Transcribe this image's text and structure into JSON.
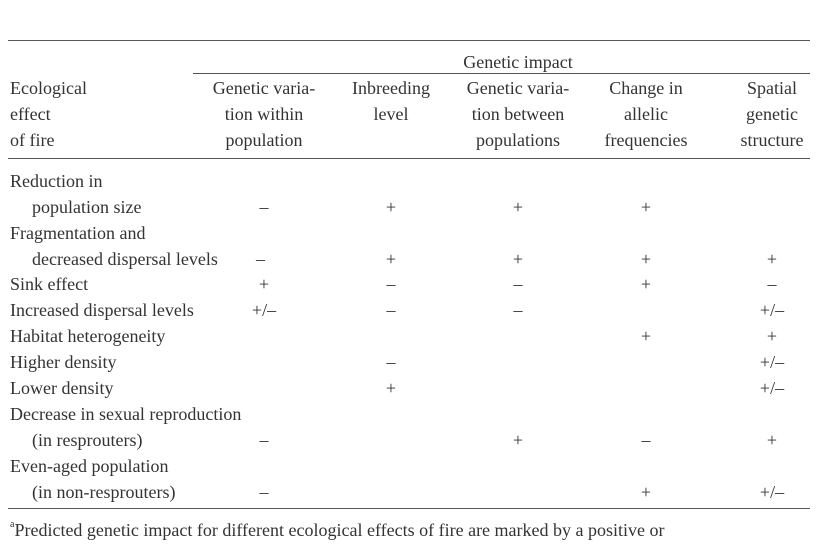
{
  "table": {
    "super_header": "Genetic impact",
    "row_header": [
      "Ecological",
      "effect",
      "of fire"
    ],
    "columns": [
      [
        "Genetic varia-",
        "tion within",
        "population"
      ],
      [
        "Inbreeding",
        "level"
      ],
      [
        "Genetic varia-",
        "tion between",
        "populations"
      ],
      [
        "Change in",
        "allelic",
        "frequencies"
      ],
      [
        "Spatial",
        "genetic",
        "structure"
      ]
    ],
    "rows": [
      {
        "label": [
          "Reduction in",
          "population size"
        ],
        "values": [
          "–",
          "+",
          "+",
          "+",
          ""
        ]
      },
      {
        "label": [
          "Fragmentation and",
          "decreased dispersal levels"
        ],
        "values": [
          "–",
          "+",
          "+",
          "+",
          "+"
        ]
      },
      {
        "label": [
          "Sink effect"
        ],
        "values": [
          "+",
          "–",
          "–",
          "+",
          "–"
        ]
      },
      {
        "label": [
          "Increased dispersal levels"
        ],
        "values": [
          "+/–",
          "–",
          "–",
          "",
          "+/–"
        ]
      },
      {
        "label": [
          "Habitat heterogeneity"
        ],
        "values": [
          "",
          "",
          "",
          "+",
          "+"
        ]
      },
      {
        "label": [
          "Higher density"
        ],
        "values": [
          "",
          "–",
          "",
          "",
          "+/–"
        ]
      },
      {
        "label": [
          "Lower density"
        ],
        "values": [
          "",
          "+",
          "",
          "",
          "+/–"
        ]
      },
      {
        "label": [
          "Decrease in sexual reproduction",
          "(in resprouters)"
        ],
        "values": [
          "–",
          "",
          "+",
          "–",
          "+"
        ]
      },
      {
        "label": [
          "Even-aged population",
          "(in non-resprouters)"
        ],
        "values": [
          "–",
          "",
          "",
          "+",
          "+/–"
        ]
      }
    ]
  },
  "footnote": {
    "marker": "a",
    "text": "Predicted genetic impact for different ecological effects of fire are marked by a positive or"
  }
}
